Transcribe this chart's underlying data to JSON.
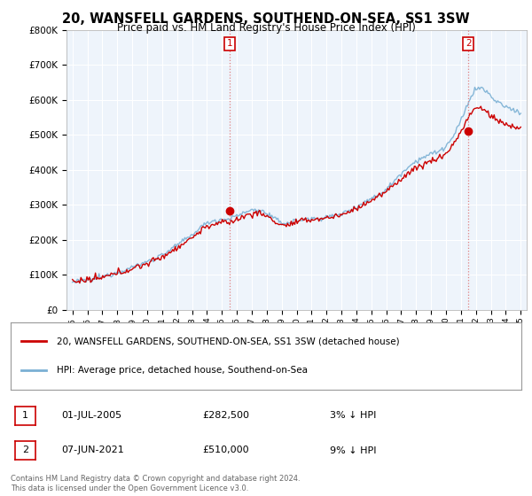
{
  "title": "20, WANSFELL GARDENS, SOUTHEND-ON-SEA, SS1 3SW",
  "subtitle": "Price paid vs. HM Land Registry's House Price Index (HPI)",
  "title_fontsize": 10.5,
  "subtitle_fontsize": 8.5,
  "background_color": "#ffffff",
  "plot_bg_color": "#eef4fb",
  "grid_color": "#ffffff",
  "line1_color": "#cc0000",
  "line2_color": "#7ab0d4",
  "ylim": [
    0,
    800000
  ],
  "yticks": [
    0,
    100000,
    200000,
    300000,
    400000,
    500000,
    600000,
    700000,
    800000
  ],
  "ytick_labels": [
    "£0",
    "£100K",
    "£200K",
    "£300K",
    "£400K",
    "£500K",
    "£600K",
    "£700K",
    "£800K"
  ],
  "marker1_x": 2005.5,
  "marker1_value": 282500,
  "marker1_label": "1",
  "marker1_date_str": "01-JUL-2005",
  "marker1_price_str": "£282,500",
  "marker1_hpi_str": "3% ↓ HPI",
  "marker2_x": 2021.5,
  "marker2_value": 510000,
  "marker2_label": "2",
  "marker2_date_str": "07-JUN-2021",
  "marker2_price_str": "£510,000",
  "marker2_hpi_str": "9% ↓ HPI",
  "legend_label1": "20, WANSFELL GARDENS, SOUTHEND-ON-SEA, SS1 3SW (detached house)",
  "legend_label2": "HPI: Average price, detached house, Southend-on-Sea",
  "footer_text": "Contains HM Land Registry data © Crown copyright and database right 2024.\nThis data is licensed under the Open Government Licence v3.0.",
  "hpi_base": [
    80000,
    85000,
    95000,
    108000,
    122000,
    138000,
    158000,
    185000,
    215000,
    248000,
    258000,
    268000,
    285000,
    275000,
    250000,
    255000,
    260000,
    265000,
    275000,
    295000,
    318000,
    345000,
    390000,
    425000,
    445000,
    468000,
    540000,
    630000,
    610000,
    580000,
    565000
  ],
  "price_base": [
    80000,
    85000,
    92000,
    105000,
    118000,
    133000,
    152000,
    178000,
    207000,
    238000,
    248000,
    258000,
    275000,
    268000,
    243000,
    250000,
    258000,
    263000,
    272000,
    290000,
    313000,
    338000,
    375000,
    405000,
    425000,
    448000,
    510000,
    575000,
    555000,
    530000,
    520000
  ]
}
